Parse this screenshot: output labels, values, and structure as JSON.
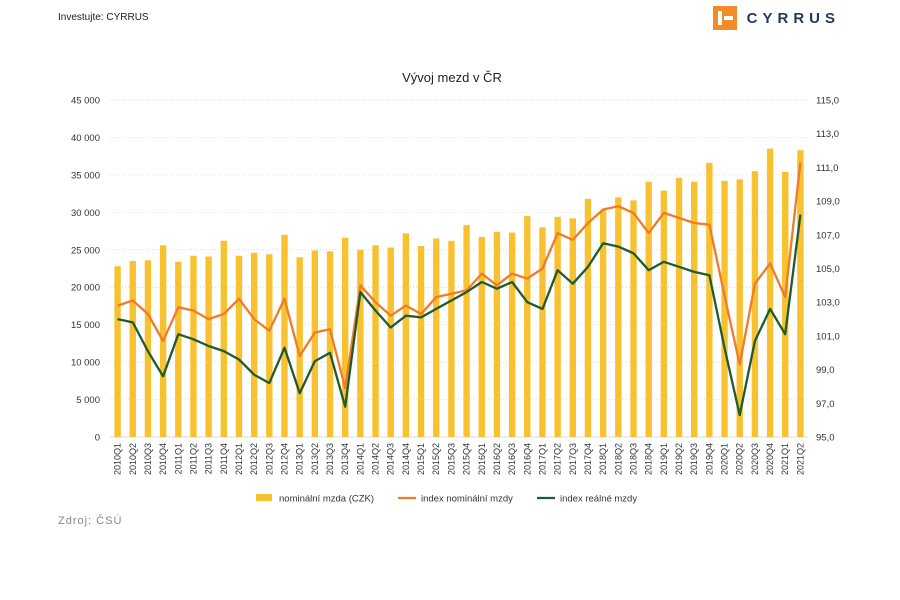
{
  "header": {
    "investor_label": "Investujte: CYRRUS",
    "logo_text": "CYRRUS"
  },
  "footer": {
    "source": "Zdroj: ČSÚ"
  },
  "colors": {
    "bar": "#f7c130",
    "nominal_index": "#ef7b2b",
    "real_index": "#1f5b2e",
    "grid": "#cfcfcf"
  },
  "chart_data": {
    "type": "bar",
    "title": "Vývoj mezd v ČR",
    "categories": [
      "2010Q1",
      "2010Q2",
      "2010Q3",
      "2010Q4",
      "2011Q1",
      "2011Q2",
      "2011Q3",
      "2011Q4",
      "2012Q1",
      "2012Q2",
      "2012Q3",
      "2012Q4",
      "2013Q1",
      "2013Q2",
      "2013Q3",
      "2013Q4",
      "2014Q1",
      "2014Q2",
      "2014Q3",
      "2014Q4",
      "2015Q1",
      "2015Q2",
      "2015Q3",
      "2015Q4",
      "2016Q1",
      "2016Q2",
      "2016Q3",
      "2016Q4",
      "2017Q1",
      "2017Q2",
      "2017Q3",
      "2017Q4",
      "2018Q1",
      "2018Q2",
      "2018Q3",
      "2018Q4",
      "2019Q1",
      "2019Q2",
      "2019Q3",
      "2019Q4",
      "2020Q1",
      "2020Q2",
      "2020Q3",
      "2020Q4",
      "2021Q1",
      "2021Q2"
    ],
    "series": [
      {
        "name": "nominální mzda (CZK)",
        "type": "bar",
        "axis": "left",
        "values": [
          22800,
          23500,
          23600,
          25600,
          23400,
          24200,
          24100,
          26200,
          24200,
          24600,
          24400,
          27000,
          24000,
          24900,
          24800,
          26600,
          25000,
          25600,
          25300,
          27200,
          25500,
          26500,
          26200,
          28300,
          26700,
          27400,
          27300,
          29500,
          28000,
          29400,
          29200,
          31800,
          30300,
          32000,
          31600,
          34100,
          32900,
          34600,
          34100,
          36600,
          34200,
          34400,
          35500,
          38500,
          35400,
          38300
        ]
      },
      {
        "name": "index nominální mzdy",
        "type": "line",
        "axis": "right",
        "values": [
          102.8,
          103.1,
          102.3,
          100.7,
          102.7,
          102.5,
          102.0,
          102.3,
          103.2,
          102.0,
          101.3,
          103.2,
          99.8,
          101.2,
          101.4,
          97.9,
          104.0,
          103.0,
          102.2,
          102.8,
          102.3,
          103.3,
          103.5,
          103.7,
          104.7,
          104.0,
          104.7,
          104.4,
          105.0,
          107.1,
          106.7,
          107.7,
          108.5,
          108.7,
          108.3,
          107.1,
          108.3,
          108.0,
          107.7,
          107.6,
          103.4,
          99.3,
          104.1,
          105.3,
          103.3,
          111.3
        ]
      },
      {
        "name": "index reálné mzdy",
        "type": "line",
        "axis": "right",
        "values": [
          102.0,
          101.8,
          100.1,
          98.6,
          101.1,
          100.8,
          100.4,
          100.1,
          99.6,
          98.7,
          98.2,
          100.3,
          97.6,
          99.5,
          100.0,
          96.8,
          103.6,
          102.5,
          101.5,
          102.2,
          102.1,
          102.6,
          103.1,
          103.6,
          104.2,
          103.8,
          104.2,
          103.0,
          102.6,
          104.9,
          104.1,
          105.1,
          106.5,
          106.3,
          105.9,
          104.9,
          105.4,
          105.1,
          104.8,
          104.6,
          100.3,
          96.3,
          100.7,
          102.6,
          101.1,
          108.2
        ]
      }
    ],
    "left_axis": {
      "min": 0,
      "max": 45000,
      "step": 5000,
      "tick_labels": [
        "0",
        "5 000",
        "10 000",
        "15 000",
        "20 000",
        "25 000",
        "30 000",
        "35 000",
        "40 000",
        "45 000"
      ]
    },
    "right_axis": {
      "min": 95.0,
      "max": 115.0,
      "step": 2.0,
      "tick_labels": [
        "95,0",
        "97,0",
        "99,0",
        "101,0",
        "103,0",
        "105,0",
        "107,0",
        "109,0",
        "111,0",
        "113,0",
        "115,0"
      ]
    },
    "grid": "horizontal",
    "legend_position": "bottom"
  }
}
